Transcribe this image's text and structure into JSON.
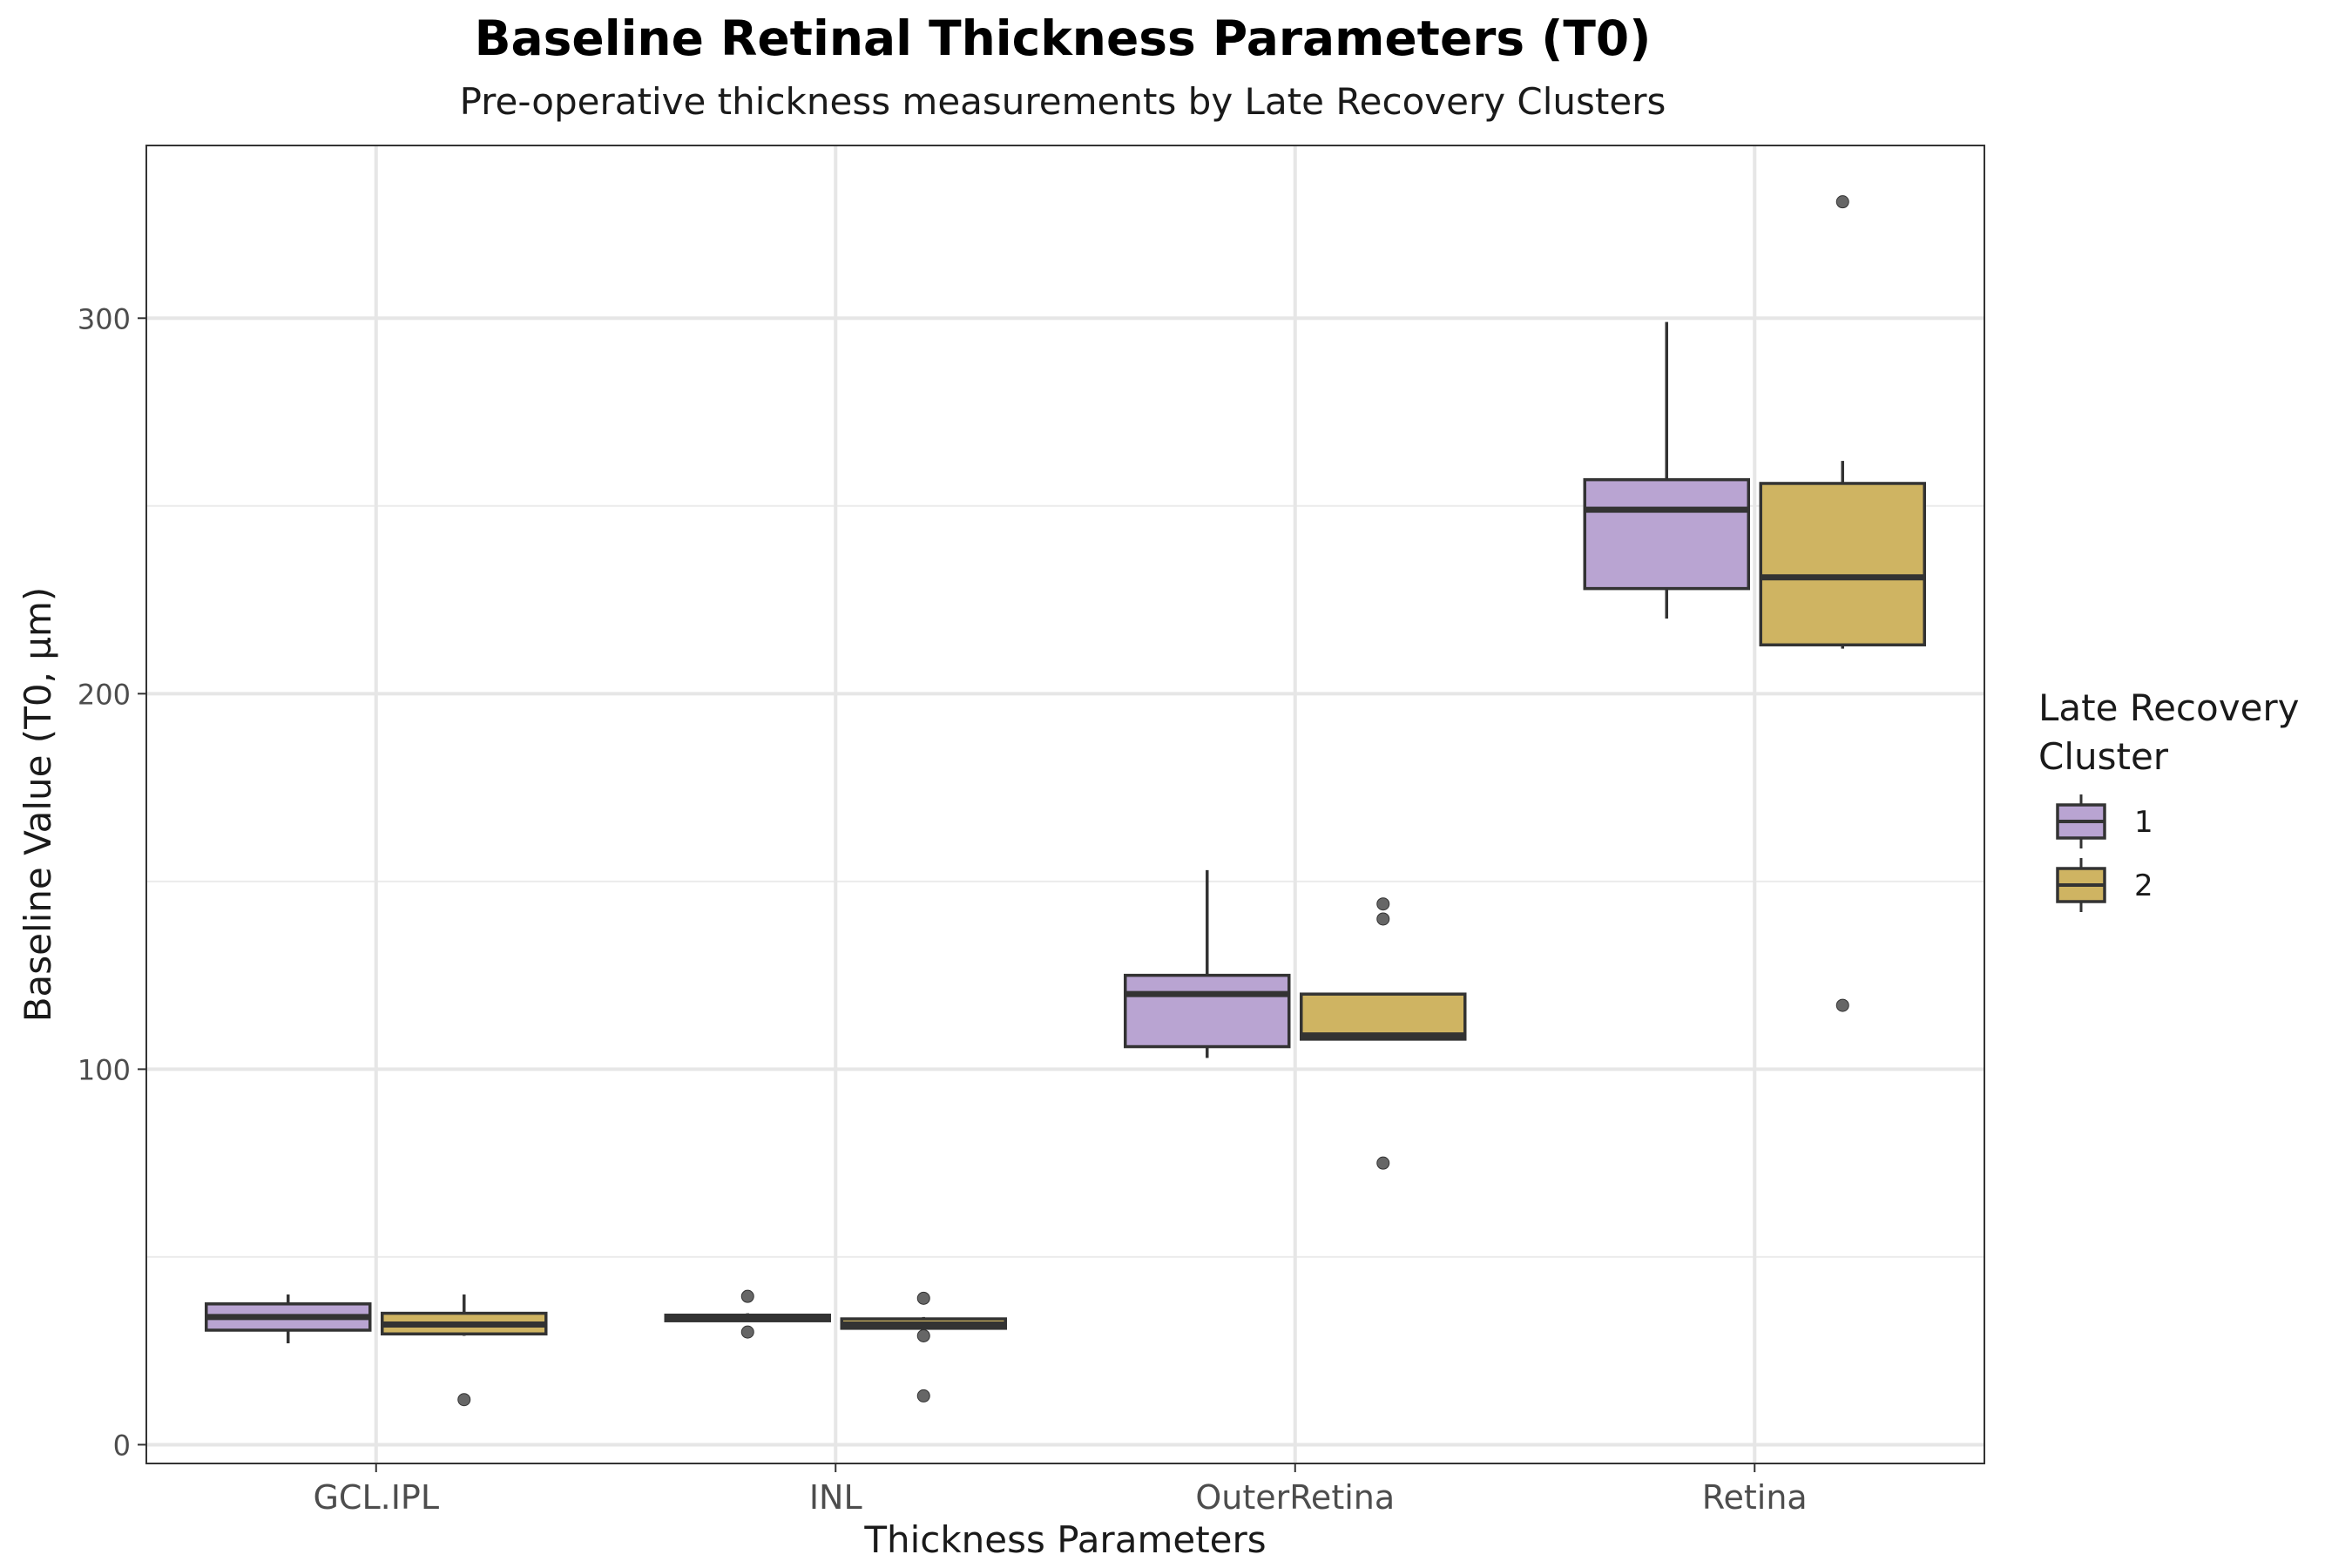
{
  "chart_data": {
    "type": "box",
    "title": "Baseline Retinal Thickness Parameters (T0)",
    "subtitle": "Pre-operative thickness measurements by Late Recovery Clusters",
    "xlabel": "Thickness Parameters",
    "ylabel": "Baseline Value (T0, µm)",
    "ylim": [
      -5,
      346
    ],
    "yticks": [
      0,
      100,
      200,
      300
    ],
    "ytick_labels": [
      "0",
      "100",
      "200",
      "300"
    ],
    "grid": true,
    "legend_title": "Late Recovery\nCluster",
    "legend_position": "right",
    "categories": [
      "GCL.IPL",
      "INL",
      "OuterRetina",
      "Retina"
    ],
    "series": [
      {
        "name": "1",
        "color": "#b9a4d2",
        "boxes": [
          {
            "whisker_low": 27,
            "q1": 30.5,
            "median": 34,
            "q3": 37.5,
            "whisker_high": 40,
            "outliers": []
          },
          {
            "whisker_low": 33,
            "q1": 33,
            "median": 33.5,
            "q3": 34.5,
            "whisker_high": 35,
            "outliers": [
              30,
              39.5
            ]
          },
          {
            "whisker_low": 103,
            "q1": 106,
            "median": 120,
            "q3": 125,
            "whisker_high": 153,
            "outliers": []
          },
          {
            "whisker_low": 220,
            "q1": 228,
            "median": 249,
            "q3": 257,
            "whisker_high": 299,
            "outliers": []
          }
        ]
      },
      {
        "name": "2",
        "color": "#cfb462",
        "boxes": [
          {
            "whisker_low": 29,
            "q1": 29.5,
            "median": 32,
            "q3": 35,
            "whisker_high": 40,
            "outliers": [
              12
            ]
          },
          {
            "whisker_low": 31,
            "q1": 31,
            "median": 32,
            "q3": 33.5,
            "whisker_high": 34,
            "outliers": [
              39,
              29,
              13
            ]
          },
          {
            "whisker_low": 108,
            "q1": 108,
            "median": 109,
            "q3": 120,
            "whisker_high": 120,
            "outliers": [
              144,
              140,
              75
            ]
          },
          {
            "whisker_low": 212,
            "q1": 213,
            "median": 231,
            "q3": 256,
            "whisker_high": 262,
            "outliers": [
              331,
              117
            ]
          }
        ]
      }
    ]
  }
}
